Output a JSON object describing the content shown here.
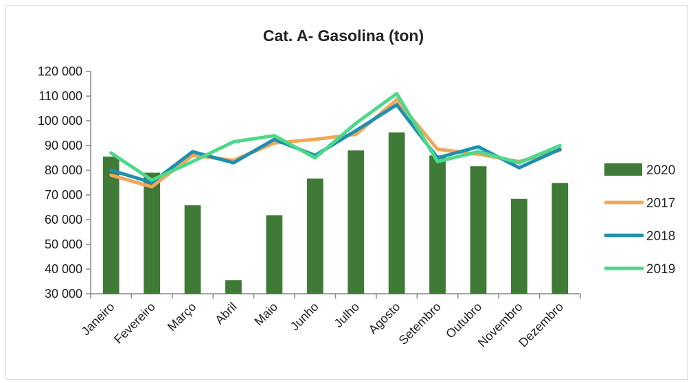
{
  "chart_data": {
    "type": "bar",
    "title": "Cat. A- Gasolina (ton)",
    "xlabel": "",
    "ylabel": "",
    "ylim": [
      30000,
      120000
    ],
    "yticks": [
      30000,
      40000,
      50000,
      60000,
      70000,
      80000,
      90000,
      100000,
      110000,
      120000
    ],
    "ytick_labels": [
      "30 000",
      "40 000",
      "50 000",
      "60 000",
      "70 000",
      "80 000",
      "90 000",
      "100 000",
      "110 000",
      "120 000"
    ],
    "categories": [
      "Janeiro",
      "Fevereiro",
      "Março",
      "Abril",
      "Maio",
      "Junho",
      "Julho",
      "Agosto",
      "Setembro",
      "Outubro",
      "Novembro",
      "Dezembro"
    ],
    "grid": false,
    "legend_position": "right",
    "series": [
      {
        "name": "2020",
        "kind": "bar",
        "color": "#3f7a36",
        "values": [
          85500,
          79000,
          65800,
          35500,
          61800,
          76600,
          88000,
          95300,
          86000,
          81600,
          68400,
          74800
        ]
      },
      {
        "name": "2017",
        "kind": "line",
        "color": "#f2a65a",
        "values": [
          78000,
          73300,
          86000,
          84000,
          91000,
          92500,
          94500,
          108500,
          88500,
          86500,
          83500,
          88000
        ]
      },
      {
        "name": "2018",
        "kind": "line",
        "color": "#1f8fb0",
        "values": [
          80000,
          75000,
          87500,
          83000,
          92500,
          86000,
          96000,
          106500,
          85000,
          89500,
          81000,
          88500
        ]
      },
      {
        "name": "2019",
        "kind": "line",
        "color": "#4cd98a",
        "values": [
          87000,
          76000,
          83500,
          91500,
          94000,
          85000,
          99000,
          111000,
          83500,
          87500,
          83000,
          90000
        ]
      }
    ]
  }
}
